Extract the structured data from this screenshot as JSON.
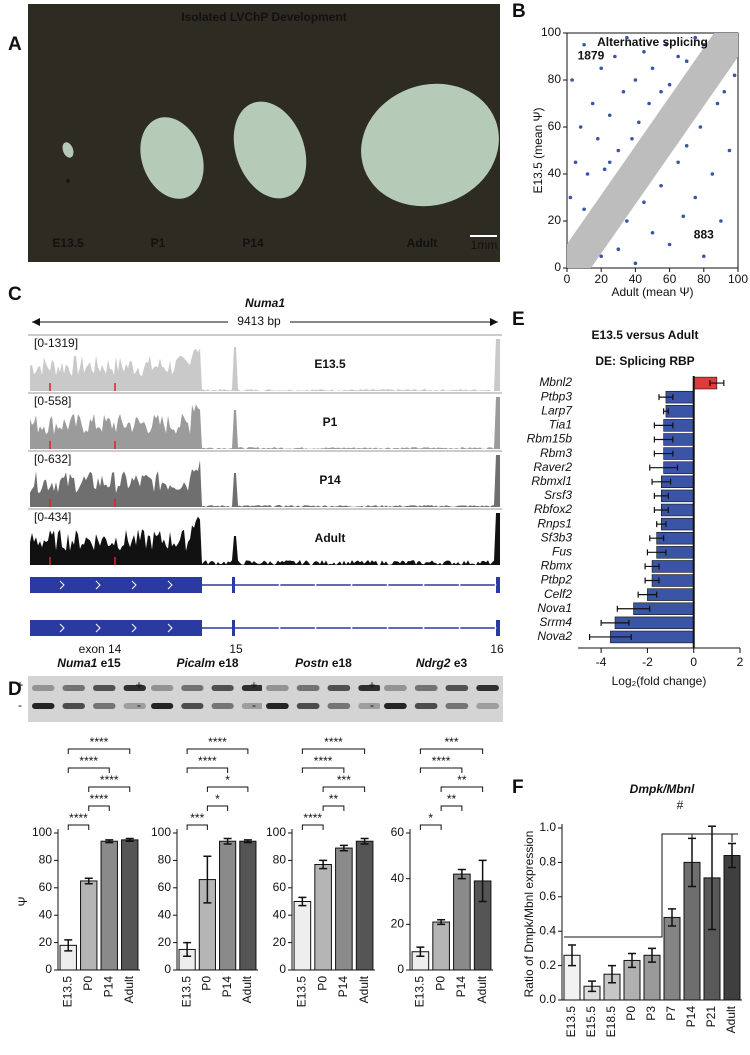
{
  "figure_labels": {
    "a": "A",
    "b": "B",
    "c": "C",
    "d": "D",
    "e": "E",
    "f": "F"
  },
  "photo": {
    "title": "Isolated LVChP Development",
    "labels": [
      "E13.5",
      "P1",
      "P14",
      "Adult"
    ],
    "marker": "*",
    "scale": "1mm"
  },
  "tracks": {
    "gene": "Numa1",
    "length": "9413 bp",
    "samples": [
      {
        "name": "E13.5",
        "range": "[0-1319]"
      },
      {
        "name": "P1",
        "range": "[0-558]"
      },
      {
        "name": "P14",
        "range": "[0-632]"
      },
      {
        "name": "Adult",
        "range": "[0-434]"
      }
    ],
    "exons": [
      "exon 14",
      "15",
      "16"
    ]
  },
  "gels": {
    "plus": "+",
    "minus": "-"
  },
  "chart_data": [
    {
      "type": "scatter",
      "title": "Alternative splicing",
      "xlabel": "Adult (mean Ψ)",
      "ylabel": "E13.5 (mean Ψ)",
      "x": [
        2,
        5,
        8,
        3,
        10,
        12,
        15,
        18,
        20,
        22,
        25,
        28,
        30,
        33,
        35,
        38,
        40,
        42,
        45,
        48,
        50,
        55,
        58,
        60,
        65,
        70,
        75,
        80,
        10,
        25,
        20,
        30,
        35,
        40,
        45,
        50,
        55,
        60,
        65,
        68,
        70,
        75,
        78,
        80,
        85,
        88,
        90,
        92,
        95,
        98
      ],
      "values": [
        30,
        45,
        60,
        80,
        95,
        40,
        70,
        55,
        85,
        42,
        65,
        90,
        50,
        75,
        98,
        55,
        80,
        62,
        92,
        70,
        85,
        75,
        95,
        78,
        90,
        88,
        98,
        95,
        25,
        45,
        5,
        8,
        20,
        2,
        28,
        15,
        35,
        10,
        45,
        22,
        52,
        30,
        60,
        5,
        40,
        70,
        20,
        75,
        50,
        82
      ],
      "color": "#3b55a6",
      "xlim": [
        0,
        100
      ],
      "ylim": [
        0,
        100
      ],
      "xticks": [
        0,
        20,
        40,
        60,
        80,
        100
      ],
      "yticks": [
        0,
        20,
        40,
        60,
        80,
        100
      ],
      "annotations": [
        {
          "text": "1879",
          "color": "#3b55a6"
        },
        {
          "text": "883",
          "color": "#e03a3a"
        }
      ]
    },
    {
      "type": "hbar",
      "title": "E13.5 versus Adult",
      "subtitle": "DE: Splicing RBP",
      "xlabel": "Log₂(fold change)",
      "categories": [
        "Mbnl2",
        "Ptbp3",
        "Larp7",
        "Tia1",
        "Rbm15b",
        "Rbm3",
        "Raver2",
        "Rbmxl1",
        "Srsf3",
        "Rbfox2",
        "Rnps1",
        "Sf3b3",
        "Fus",
        "Rbmx",
        "Ptbp2",
        "Celf2",
        "Nova1",
        "Srrm4",
        "Nova2"
      ],
      "values": [
        1.0,
        -1.2,
        -1.2,
        -1.3,
        -1.3,
        -1.3,
        -1.3,
        -1.4,
        -1.4,
        -1.4,
        -1.4,
        -1.6,
        -1.6,
        -1.8,
        -1.8,
        -2.0,
        -2.6,
        -3.4,
        -3.6
      ],
      "errors": [
        0.3,
        0.3,
        0.1,
        0.4,
        0.4,
        0.4,
        0.6,
        0.4,
        0.3,
        0.3,
        0.2,
        0.3,
        0.4,
        0.3,
        0.3,
        0.4,
        0.7,
        0.6,
        0.9
      ],
      "colors": [
        "#e03a3a",
        "#3b55a6",
        "#3b55a6",
        "#3b55a6",
        "#3b55a6",
        "#3b55a6",
        "#3b55a6",
        "#3b55a6",
        "#3b55a6",
        "#3b55a6",
        "#3b55a6",
        "#3b55a6",
        "#3b55a6",
        "#3b55a6",
        "#3b55a6",
        "#3b55a6",
        "#3b55a6",
        "#3b55a6",
        "#3b55a6"
      ],
      "xlim": [
        -5,
        2
      ],
      "xticks": [
        -4,
        -2,
        0,
        2
      ]
    },
    {
      "type": "bar",
      "title": "Numa1",
      "subtitle": "e15",
      "ylabel": "Ψ",
      "categories": [
        "E13.5",
        "P0",
        "P14",
        "Adult"
      ],
      "values": [
        18,
        65,
        94,
        95
      ],
      "errors": [
        4,
        2,
        1,
        1
      ],
      "colors": [
        "#eeeeee",
        "#b5b5b5",
        "#8a8a8a",
        "#555555"
      ],
      "ylim": [
        0,
        100
      ],
      "yticks": [
        0,
        20,
        40,
        60,
        80,
        100
      ],
      "annotations": [
        {
          "text": "****",
          "from": 0,
          "to": 1
        },
        {
          "text": "****",
          "from": 1,
          "to": 2
        },
        {
          "text": "****",
          "from": 1,
          "to": 3
        },
        {
          "text": "****",
          "from": 0,
          "to": 2
        },
        {
          "text": "****",
          "from": 0,
          "to": 3
        }
      ]
    },
    {
      "type": "bar",
      "title": "Picalm",
      "subtitle": "e18",
      "categories": [
        "E13.5",
        "P0",
        "P14",
        "Adult"
      ],
      "values": [
        15,
        66,
        94,
        94
      ],
      "errors": [
        5,
        17,
        2,
        1
      ],
      "colors": [
        "#eeeeee",
        "#b5b5b5",
        "#8a8a8a",
        "#555555"
      ],
      "ylim": [
        0,
        100
      ],
      "yticks": [
        0,
        20,
        40,
        60,
        80,
        100
      ],
      "annotations": [
        {
          "text": "***",
          "from": 0,
          "to": 1
        },
        {
          "text": "*",
          "from": 1,
          "to": 2
        },
        {
          "text": "*",
          "from": 1,
          "to": 3
        },
        {
          "text": "****",
          "from": 0,
          "to": 2
        },
        {
          "text": "****",
          "from": 0,
          "to": 3
        }
      ]
    },
    {
      "type": "bar",
      "title": "Postn",
      "subtitle": "e18",
      "categories": [
        "E13.5",
        "P0",
        "P14",
        "Adult"
      ],
      "values": [
        50,
        77,
        89,
        94
      ],
      "errors": [
        3,
        3,
        2,
        2
      ],
      "colors": [
        "#eeeeee",
        "#b5b5b5",
        "#8a8a8a",
        "#555555"
      ],
      "ylim": [
        0,
        100
      ],
      "yticks": [
        0,
        20,
        40,
        60,
        80,
        100
      ],
      "annotations": [
        {
          "text": "****",
          "from": 0,
          "to": 1
        },
        {
          "text": "**",
          "from": 1,
          "to": 2
        },
        {
          "text": "***",
          "from": 1,
          "to": 3
        },
        {
          "text": "****",
          "from": 0,
          "to": 2
        },
        {
          "text": "****",
          "from": 0,
          "to": 3
        }
      ]
    },
    {
      "type": "bar",
      "title": "Ndrg2",
      "subtitle": "e3",
      "categories": [
        "E13.5",
        "P0",
        "P14",
        "Adult"
      ],
      "values": [
        8,
        21,
        42,
        39
      ],
      "errors": [
        2,
        1,
        2,
        9
      ],
      "colors": [
        "#eeeeee",
        "#b5b5b5",
        "#8a8a8a",
        "#555555"
      ],
      "ylim": [
        0,
        60
      ],
      "yticks": [
        0,
        20,
        40,
        60
      ],
      "annotations": [
        {
          "text": "*",
          "from": 0,
          "to": 1
        },
        {
          "text": "**",
          "from": 1,
          "to": 2
        },
        {
          "text": "**",
          "from": 1,
          "to": 3
        },
        {
          "text": "****",
          "from": 0,
          "to": 2
        },
        {
          "text": "***",
          "from": 0,
          "to": 3
        }
      ]
    },
    {
      "type": "bar",
      "title": "Dmpk/Mbnl",
      "ylabel": "Ratio of Dmpk/Mbnl expression",
      "categories": [
        "E13.5",
        "E15.5",
        "E18.5",
        "P0",
        "P3",
        "P7",
        "P14",
        "P21",
        "Adult"
      ],
      "values": [
        0.26,
        0.08,
        0.15,
        0.23,
        0.26,
        0.48,
        0.8,
        0.71,
        0.84
      ],
      "errors": [
        0.06,
        0.03,
        0.05,
        0.04,
        0.04,
        0.05,
        0.14,
        0.3,
        0.07
      ],
      "colors": [
        "#f2f2f2",
        "#dcdcdc",
        "#c6c6c6",
        "#b0b0b0",
        "#9a9a9a",
        "#848484",
        "#6e6e6e",
        "#585858",
        "#3f3f3f"
      ],
      "ylim": [
        0,
        1
      ],
      "yticks": [
        {
          "value": 0,
          "label": "0.0"
        },
        0.2,
        0.4,
        0.6,
        0.8,
        {
          "value": 1,
          "label": "1.0"
        }
      ],
      "annotations": [
        {
          "text": "#",
          "groups": [
            [
              0,
              4
            ],
            [
              6,
              8
            ]
          ]
        }
      ]
    }
  ]
}
